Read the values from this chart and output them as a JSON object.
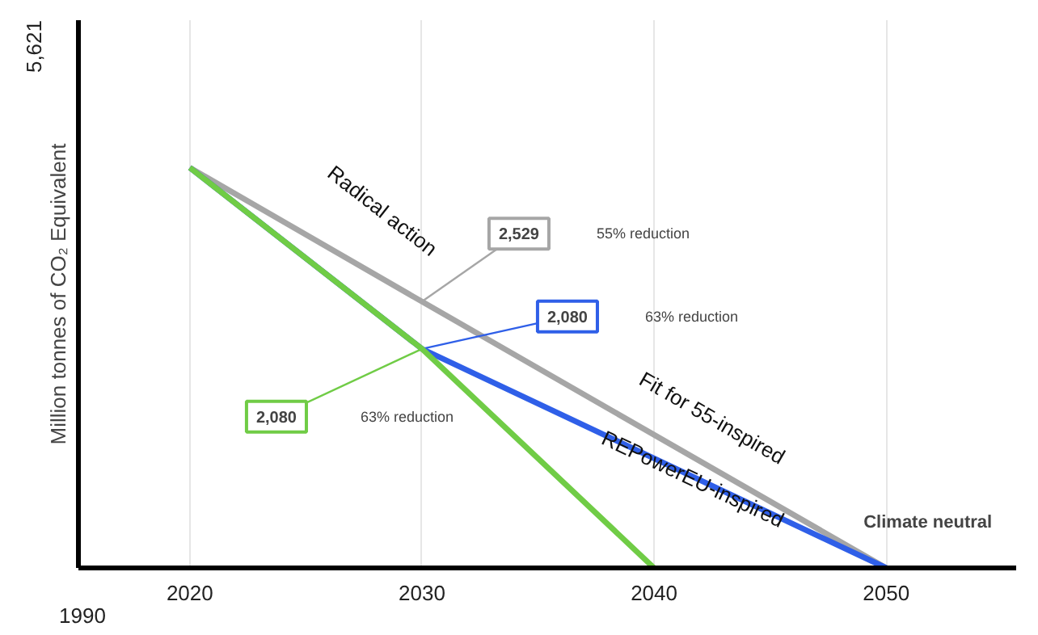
{
  "chart_data": {
    "type": "line",
    "ylabel": "Million tonnes of CO₂ Equivalent",
    "xlim": [
      2015.2,
      2055.6
    ],
    "xticks": [
      2020,
      2030,
      2040,
      2050
    ],
    "ylim": [
      0,
      5200
    ],
    "tick_labels": "x",
    "grid": "x",
    "legend": false,
    "marker": "none",
    "line_style": "solid",
    "series": [
      {
        "name": "Fit for 55-inspired",
        "color": "#a6a6a6",
        "x": [
          2020,
          2030,
          2050
        ],
        "values": [
          3800,
          2529,
          0
        ],
        "value_labels": [
          null,
          "2,529",
          null
        ]
      },
      {
        "name": "REPowerEU-inspired",
        "color": "#2f5fe8",
        "x": [
          2020,
          2030,
          2050
        ],
        "values": [
          3800,
          2080,
          0
        ],
        "value_labels": [
          null,
          "2,080",
          null
        ]
      },
      {
        "name": "Radical action",
        "color": "#70cc46",
        "x": [
          2020,
          2030,
          2040
        ],
        "values": [
          3800,
          2080,
          0
        ],
        "value_labels": [
          null,
          "2,080",
          null
        ]
      }
    ],
    "annotations": [
      "55% reduction",
      "63% reduction",
      "63% reduction",
      {
        "text": "Climate neutral",
        "x": 2050,
        "y": 0
      },
      "1990",
      "5,621"
    ]
  }
}
